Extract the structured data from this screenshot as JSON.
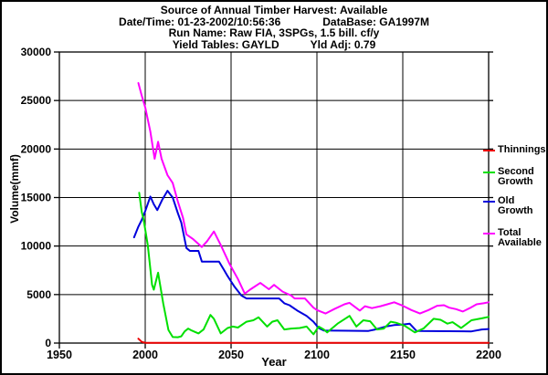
{
  "header": {
    "line1": "Source of Annual Timber Harvest: Available",
    "line2_left": "Date/Time: 01-23-2002/10:56:36",
    "line2_right": "DataBase: GA1997M",
    "line3": "Run Name: Raw FIA, 3SPGs, 1.5 bill. cf/y",
    "line4_left": "Yield Tables: GAYLD",
    "line4_right": "Yld Adj: 0.79"
  },
  "chart_data": {
    "type": "line",
    "title": "Source of Annual Timber Harvest: Available",
    "xlabel": "Year",
    "ylabel": "Volume(mmf)",
    "xlim": [
      1950,
      2200
    ],
    "ylim": [
      0,
      30000
    ],
    "x_ticks": [
      1950,
      2000,
      2050,
      2100,
      2150,
      2200
    ],
    "y_ticks": [
      0,
      5000,
      10000,
      15000,
      20000,
      25000,
      30000
    ],
    "grid": true,
    "grid_color": "#000000",
    "legend_position": "right",
    "series": [
      {
        "id": "thinnings",
        "name": "Thinnings",
        "color": "#eb0000",
        "points": [
          [
            1996,
            450
          ],
          [
            1998,
            120
          ],
          [
            2000,
            30
          ],
          [
            2200,
            30
          ]
        ]
      },
      {
        "id": "second-growth",
        "name": "Second Growth",
        "color": "#00e000",
        "points": [
          [
            1996.5,
            15500
          ],
          [
            1998,
            13500
          ],
          [
            1999,
            12800
          ],
          [
            2001.5,
            10100
          ],
          [
            2004,
            6000
          ],
          [
            2005,
            5500
          ],
          [
            2007.5,
            7250
          ],
          [
            2010.5,
            4100
          ],
          [
            2013.5,
            1350
          ],
          [
            2016,
            620
          ],
          [
            2019,
            600
          ],
          [
            2021,
            700
          ],
          [
            2023,
            1200
          ],
          [
            2025,
            1500
          ],
          [
            2027,
            1300
          ],
          [
            2029,
            1150
          ],
          [
            2031,
            1000
          ],
          [
            2034,
            1400
          ],
          [
            2038,
            2900
          ],
          [
            2040,
            2500
          ],
          [
            2044,
            1000
          ],
          [
            2048,
            1550
          ],
          [
            2051,
            1700
          ],
          [
            2054,
            1600
          ],
          [
            2059,
            2200
          ],
          [
            2063,
            2350
          ],
          [
            2066,
            2650
          ],
          [
            2071,
            1700
          ],
          [
            2074,
            2200
          ],
          [
            2077,
            2350
          ],
          [
            2081,
            1400
          ],
          [
            2085,
            1500
          ],
          [
            2090,
            1550
          ],
          [
            2094,
            1700
          ],
          [
            2098,
            900
          ],
          [
            2101,
            1700
          ],
          [
            2104,
            1400
          ],
          [
            2106,
            1100
          ],
          [
            2112,
            2000
          ],
          [
            2119,
            2800
          ],
          [
            2123,
            1700
          ],
          [
            2127,
            2350
          ],
          [
            2131,
            2250
          ],
          [
            2135,
            1400
          ],
          [
            2139,
            1500
          ],
          [
            2143,
            2200
          ],
          [
            2146,
            2100
          ],
          [
            2151,
            1800
          ],
          [
            2157,
            1100
          ],
          [
            2162,
            1500
          ],
          [
            2168,
            2500
          ],
          [
            2172,
            2400
          ],
          [
            2176,
            2000
          ],
          [
            2179,
            2150
          ],
          [
            2184,
            1550
          ],
          [
            2190,
            2350
          ],
          [
            2196,
            2550
          ],
          [
            2200,
            2700
          ]
        ]
      },
      {
        "id": "old-growth",
        "name": "Old Growth",
        "color": "#0000dc",
        "points": [
          [
            1993.5,
            10900
          ],
          [
            1996,
            12000
          ],
          [
            1998,
            12700
          ],
          [
            2000,
            13600
          ],
          [
            2003,
            15100
          ],
          [
            2005,
            14300
          ],
          [
            2007,
            13700
          ],
          [
            2010,
            14800
          ],
          [
            2013,
            15700
          ],
          [
            2016,
            15000
          ],
          [
            2019,
            13400
          ],
          [
            2021,
            12400
          ],
          [
            2024,
            9800
          ],
          [
            2026,
            9500
          ],
          [
            2031,
            9500
          ],
          [
            2033,
            8400
          ],
          [
            2043,
            8400
          ],
          [
            2046,
            7500
          ],
          [
            2048,
            6900
          ],
          [
            2052,
            5800
          ],
          [
            2056,
            4900
          ],
          [
            2059,
            4600
          ],
          [
            2078,
            4600
          ],
          [
            2081,
            4100
          ],
          [
            2084,
            3900
          ],
          [
            2089,
            3300
          ],
          [
            2094,
            2800
          ],
          [
            2098,
            2200
          ],
          [
            2101,
            1550
          ],
          [
            2104,
            1300
          ],
          [
            2130,
            1250
          ],
          [
            2134,
            1400
          ],
          [
            2140,
            1700
          ],
          [
            2145,
            1850
          ],
          [
            2150,
            1900
          ],
          [
            2154,
            2000
          ],
          [
            2158,
            1250
          ],
          [
            2190,
            1200
          ],
          [
            2196,
            1400
          ],
          [
            2200,
            1450
          ]
        ]
      },
      {
        "id": "total-available",
        "name": "Total Available",
        "color": "#ff00ff",
        "points": [
          [
            1996,
            26800
          ],
          [
            1998,
            25500
          ],
          [
            2000,
            24300
          ],
          [
            2003,
            21800
          ],
          [
            2005.5,
            19000
          ],
          [
            2007.5,
            20750
          ],
          [
            2009.5,
            19000
          ],
          [
            2013,
            17300
          ],
          [
            2016,
            16500
          ],
          [
            2019,
            14600
          ],
          [
            2022,
            12900
          ],
          [
            2024,
            11200
          ],
          [
            2028,
            10700
          ],
          [
            2033,
            9900
          ],
          [
            2036,
            10500
          ],
          [
            2040,
            11500
          ],
          [
            2044,
            10100
          ],
          [
            2049,
            8200
          ],
          [
            2054,
            6600
          ],
          [
            2058,
            5100
          ],
          [
            2061,
            5500
          ],
          [
            2067,
            6200
          ],
          [
            2072,
            5550
          ],
          [
            2075,
            6000
          ],
          [
            2080,
            5300
          ],
          [
            2085,
            4900
          ],
          [
            2087,
            4600
          ],
          [
            2093,
            4600
          ],
          [
            2098,
            3650
          ],
          [
            2100,
            3400
          ],
          [
            2105,
            3050
          ],
          [
            2110,
            3500
          ],
          [
            2116,
            4000
          ],
          [
            2119,
            4150
          ],
          [
            2125,
            3350
          ],
          [
            2128,
            3800
          ],
          [
            2132,
            3600
          ],
          [
            2137,
            3800
          ],
          [
            2141,
            4000
          ],
          [
            2145,
            4200
          ],
          [
            2150,
            3850
          ],
          [
            2155,
            3400
          ],
          [
            2160,
            3050
          ],
          [
            2165,
            3400
          ],
          [
            2170,
            3850
          ],
          [
            2174,
            3900
          ],
          [
            2177,
            3650
          ],
          [
            2181,
            3500
          ],
          [
            2185,
            3250
          ],
          [
            2189,
            3600
          ],
          [
            2193,
            4000
          ],
          [
            2197,
            4100
          ],
          [
            2200,
            4200
          ]
        ]
      }
    ]
  }
}
